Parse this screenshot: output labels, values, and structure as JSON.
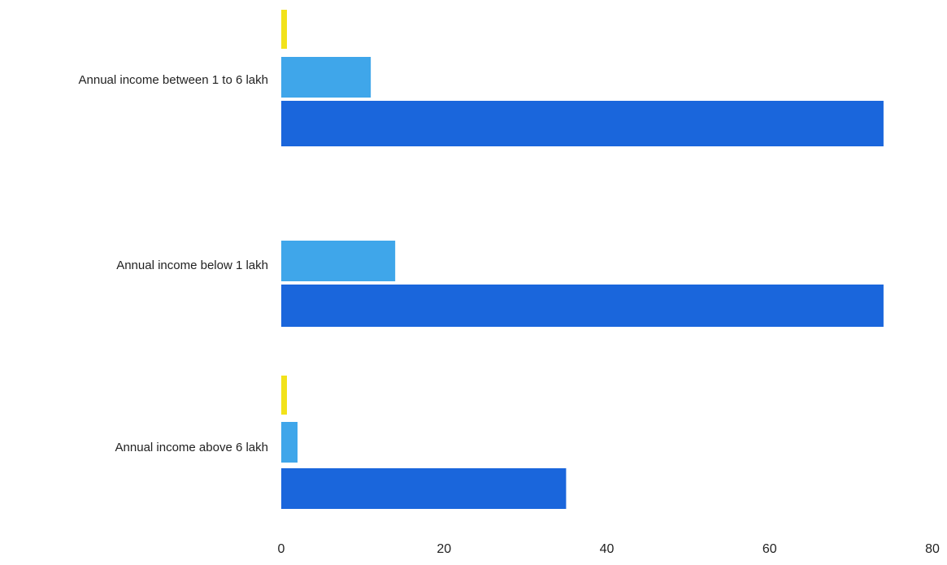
{
  "chart_data": {
    "type": "bar",
    "orientation": "horizontal",
    "title": "",
    "xlabel": "",
    "ylabel": "",
    "categories": [
      "Annual income between 1 to 6 lakh",
      "Annual income below 1 lakh",
      "Annual income above 6 lakh"
    ],
    "series": [
      {
        "color": "#f2e21a",
        "values": [
          0.5,
          0,
          0.5
        ]
      },
      {
        "color": "#3fa6ea",
        "values": [
          11,
          14,
          2
        ]
      },
      {
        "color": "#1a66dc",
        "values": [
          74,
          74,
          35
        ]
      }
    ],
    "xlim": [
      0,
      80
    ],
    "xticks": [
      "0",
      "20",
      "40",
      "60",
      "80"
    ],
    "grid": false,
    "legend": "none"
  }
}
